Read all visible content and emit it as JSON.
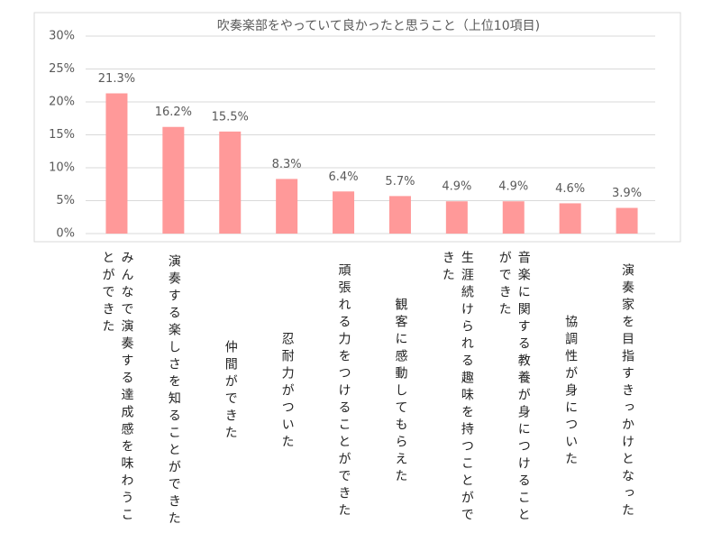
{
  "chart_data": {
    "type": "bar",
    "title": "吹奏楽部をやっていて良かったと思うこと（上位10項目)",
    "categories": [
      "みんなで演奏する達成感を味わうことができた",
      "演奏する楽しさを知ることができた",
      "仲間ができた",
      "忍耐力がついた",
      "頑張れる力をつけることができた",
      "観客に感動してもらえた",
      "生涯続けられる趣味を持つことができた",
      "音楽に関する教養が身につけることができた",
      "協調性が身についた",
      "演奏家を目指すきっかけとなった"
    ],
    "values": [
      21.3,
      16.2,
      15.5,
      8.3,
      6.4,
      5.7,
      4.9,
      4.9,
      4.6,
      3.9
    ],
    "value_labels": [
      "21.3%",
      "16.2%",
      "15.5%",
      "8.3%",
      "6.4%",
      "5.7%",
      "4.9%",
      "4.9%",
      "4.6%",
      "3.9%"
    ],
    "color": "#ff9999",
    "ylim": [
      0,
      30
    ],
    "yticks": [
      {
        "value": 0,
        "label": "0%"
      },
      {
        "value": 5,
        "label": "5%"
      },
      {
        "value": 10,
        "label": "10%"
      },
      {
        "value": 15,
        "label": "15%"
      },
      {
        "value": 20,
        "label": "20%"
      },
      {
        "value": 25,
        "label": "25%"
      },
      {
        "value": 30,
        "label": "30%"
      }
    ],
    "grid": true
  }
}
